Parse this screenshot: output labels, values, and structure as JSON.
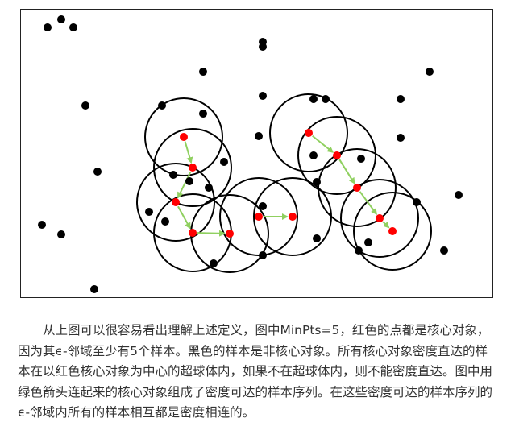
{
  "figure": {
    "description_icon": "dbscan-diagram",
    "core_point_color": "#ff0000",
    "noncore_point_color": "#000000",
    "arrow_color": "#90d060",
    "circle_color": "#000000"
  },
  "caption": {
    "text": "从上图可以很容易看出理解上述定义，图中MinPts=5，红色的点都是核心对象，因为其ϵ-邻域至少有5个样本。黑色的样本是非核心对象。所有核心对象密度直达的样本在以红色核心对象为中心的超球体内，如果不在超球体内，则不能密度直达。图中用绿色箭头连起来的核心对象组成了密度可达的样本序列。在这些密度可达的样本序列的ϵ-邻域内所有的样本相互都是密度相连的。"
  }
}
